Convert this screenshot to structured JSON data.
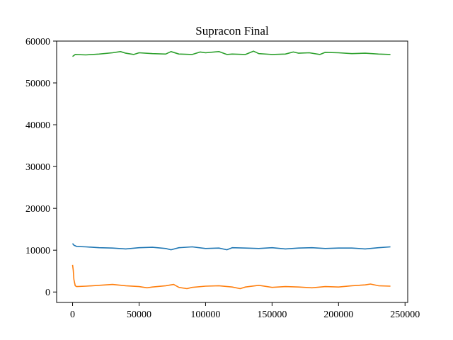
{
  "chart_data": {
    "type": "line",
    "title": "Supracon Final",
    "xlabel": "",
    "ylabel": "",
    "xlim": [
      -12000,
      252000
    ],
    "ylim": [
      -2500,
      60000
    ],
    "xticks": [
      0,
      50000,
      100000,
      150000,
      200000,
      250000
    ],
    "yticks": [
      0,
      10000,
      20000,
      30000,
      40000,
      50000,
      60000
    ],
    "grid": false,
    "legend": "none",
    "series": [
      {
        "color": "#2ca02c",
        "x": [
          0,
          2000,
          10000,
          20000,
          30000,
          36000,
          40000,
          46000,
          50000,
          60000,
          70000,
          74000,
          80000,
          90000,
          96000,
          100000,
          110000,
          116000,
          120000,
          130000,
          136000,
          140000,
          150000,
          160000,
          166000,
          170000,
          178000,
          186000,
          190000,
          200000,
          210000,
          220000,
          230000,
          239000
        ],
        "y": [
          56300,
          56800,
          56700,
          56900,
          57200,
          57500,
          57100,
          56800,
          57200,
          57000,
          56900,
          57500,
          56900,
          56800,
          57400,
          57200,
          57500,
          56800,
          56900,
          56800,
          57600,
          57000,
          56800,
          56900,
          57400,
          57100,
          57200,
          56800,
          57300,
          57200,
          57000,
          57100,
          56900,
          56800
        ]
      },
      {
        "color": "#1f77b4",
        "x": [
          0,
          1000,
          3000,
          10000,
          20000,
          30000,
          40000,
          50000,
          60000,
          70000,
          74000,
          80000,
          90000,
          100000,
          110000,
          116000,
          120000,
          130000,
          140000,
          150000,
          160000,
          170000,
          180000,
          190000,
          200000,
          210000,
          220000,
          230000,
          239000
        ],
        "y": [
          11600,
          11200,
          10900,
          10800,
          10600,
          10500,
          10300,
          10600,
          10700,
          10400,
          10100,
          10600,
          10800,
          10400,
          10500,
          10100,
          10600,
          10500,
          10400,
          10600,
          10300,
          10500,
          10600,
          10400,
          10500,
          10500,
          10300,
          10600,
          10800
        ]
      },
      {
        "color": "#ff7f0e",
        "x": [
          0,
          500,
          1000,
          2000,
          3000,
          10000,
          20000,
          30000,
          40000,
          50000,
          56000,
          60000,
          70000,
          76000,
          80000,
          86000,
          90000,
          100000,
          110000,
          120000,
          126000,
          130000,
          140000,
          150000,
          160000,
          170000,
          180000,
          190000,
          200000,
          210000,
          220000,
          224000,
          230000,
          239000
        ],
        "y": [
          6500,
          5200,
          3000,
          1500,
          1300,
          1400,
          1600,
          1800,
          1500,
          1300,
          1000,
          1200,
          1500,
          1800,
          1100,
          800,
          1100,
          1400,
          1500,
          1200,
          800,
          1200,
          1600,
          1100,
          1300,
          1200,
          1000,
          1300,
          1200,
          1500,
          1700,
          1900,
          1500,
          1400
        ]
      }
    ]
  }
}
